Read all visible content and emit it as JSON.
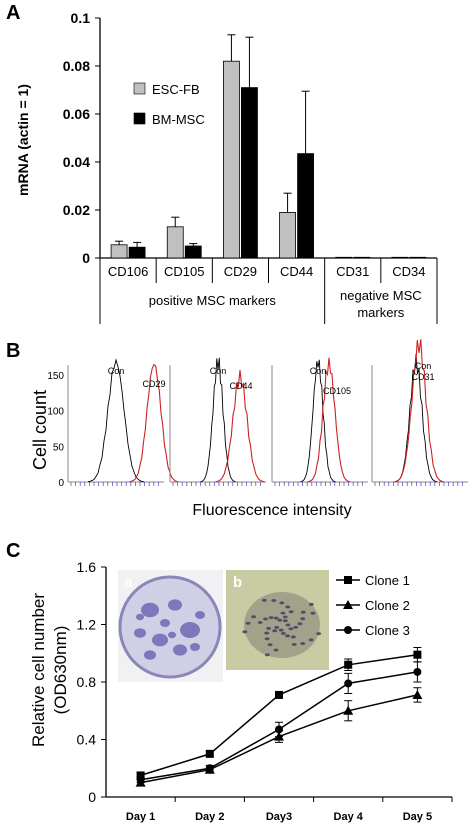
{
  "panels": {
    "A": {
      "label": "A",
      "chart_data": {
        "type": "bar",
        "categories": [
          "CD106",
          "CD105",
          "CD29",
          "CD44",
          "CD31",
          "CD34"
        ],
        "series": [
          {
            "name": "ESC-FB",
            "values": [
              0.0055,
              0.013,
              0.082,
              0.019,
              0.0003,
              0.0003
            ],
            "errors": [
              0.0015,
              0.004,
              0.011,
              0.008,
              0,
              0
            ],
            "color": "#c0c0c0"
          },
          {
            "name": "BM-MSC",
            "values": [
              0.0045,
              0.005,
              0.071,
              0.0435,
              0.0003,
              0.0003
            ],
            "errors": [
              0.002,
              0.001,
              0.021,
              0.026,
              0,
              0
            ],
            "color": "#000000"
          }
        ],
        "ylabel": "mRNA (actin = 1)",
        "ylim": [
          0,
          0.1
        ],
        "yticks": [
          "0",
          "0.02",
          "0.04",
          "0.06",
          "0.08",
          "0.1"
        ],
        "groups": [
          {
            "label": "positive MSC markers",
            "label_lines": [
              "positive MSC markers"
            ]
          },
          {
            "label": "negative MSC markers",
            "label_lines": [
              "negative MSC",
              "markers"
            ]
          }
        ]
      }
    },
    "B": {
      "label": "B",
      "ylabel": "Cell count",
      "xlabel": "Fluorescence intensity",
      "yticks": [
        "0",
        "50",
        "100",
        "150"
      ],
      "histograms": [
        {
          "control_label": "Con",
          "marker_label": "CD29"
        },
        {
          "control_label": "Con",
          "marker_label": "CD44"
        },
        {
          "control_label": "Con",
          "marker_label": "CD105"
        },
        {
          "control_label": "Con",
          "marker_label": "CD31"
        }
      ],
      "colors": {
        "control": "#000000",
        "marker": "#cc2222"
      }
    },
    "C": {
      "label": "C",
      "inset_labels": [
        "a",
        "b"
      ],
      "chart_data": {
        "type": "line",
        "categories": [
          "Day 1",
          "Day 2",
          "Day3",
          "Day 4",
          "Day 5"
        ],
        "series": [
          {
            "name": "Clone 1",
            "marker": "square",
            "values": [
              0.15,
              0.3,
              0.71,
              0.92,
              0.99
            ],
            "errors": [
              0.02,
              0.02,
              0.02,
              0.04,
              0.05
            ]
          },
          {
            "name": "Clone 2",
            "marker": "triangle",
            "values": [
              0.1,
              0.19,
              0.42,
              0.6,
              0.71
            ],
            "errors": [
              0.02,
              0.02,
              0.04,
              0.07,
              0.05
            ]
          },
          {
            "name": "Clone 3",
            "marker": "circle",
            "values": [
              0.12,
              0.2,
              0.47,
              0.79,
              0.87
            ],
            "errors": [
              0.02,
              0.02,
              0.05,
              0.07,
              0.07
            ]
          }
        ],
        "ylabel": "Relative cell number (OD630nm)",
        "ylabel_lines": [
          "Relative cell number",
          "(OD630nm)"
        ],
        "ylim": [
          0,
          1.6
        ],
        "yticks": [
          "0",
          "0.4",
          "0.8",
          "1.2",
          "1.6"
        ]
      }
    }
  }
}
